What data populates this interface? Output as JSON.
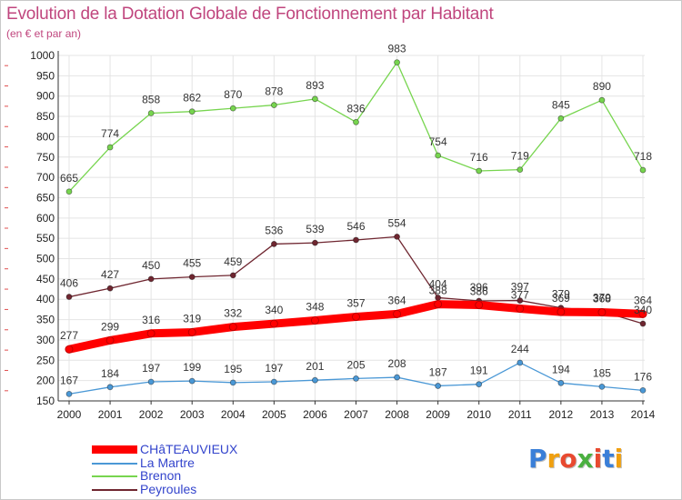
{
  "header": {
    "title": "Evolution de la Dotation Globale de Fonctionnement par Habitant",
    "subtitle": "(en € et par an)"
  },
  "colors": {
    "title": "#c0467e",
    "legend_text": "#3344cc",
    "grid": "#e4e4e4"
  },
  "chart_data": {
    "type": "line",
    "title": "Evolution de la Dotation Globale de Fonctionnement par Habitant",
    "subtitle": "(en € et par an)",
    "xlabel": "",
    "ylabel": "",
    "ylim": [
      150,
      1000
    ],
    "ytick_step": 50,
    "grid": true,
    "legend_position": "bottom-left",
    "categories": [
      "2000",
      "2001",
      "2002",
      "2003",
      "2004",
      "2005",
      "2006",
      "2007",
      "2008",
      "2009",
      "2010",
      "2011",
      "2012",
      "2013",
      "2014"
    ],
    "series": [
      {
        "name": "Brenon",
        "color": "#77d54f",
        "values": [
          665,
          774,
          858,
          862,
          870,
          878,
          893,
          836,
          983,
          754,
          716,
          719,
          845,
          890,
          718
        ]
      },
      {
        "name": "Peyroules",
        "color": "#6f2630",
        "values": [
          406,
          427,
          450,
          455,
          459,
          536,
          539,
          546,
          554,
          404,
          396,
          397,
          379,
          370,
          340
        ]
      },
      {
        "name": "La Martre",
        "color": "#4a98d6",
        "values": [
          167,
          184,
          197,
          199,
          195,
          197,
          201,
          205,
          208,
          187,
          191,
          244,
          194,
          185,
          176
        ]
      },
      {
        "name": "CHâTEAUVIEUX",
        "color": "#ff0000",
        "values": [
          277,
          299,
          316,
          319,
          332,
          340,
          348,
          357,
          364,
          388,
          386,
          377,
          369,
          368,
          364
        ]
      }
    ]
  },
  "legend": {
    "items": [
      {
        "label": "CHâTEAUVIEUX",
        "color": "#ff0000"
      },
      {
        "label": "La Martre",
        "color": "#4a98d6"
      },
      {
        "label": "Brenon",
        "color": "#77d54f"
      },
      {
        "label": "Peyroules",
        "color": "#6f2630"
      }
    ]
  },
  "logo": {
    "text": "Proxiti",
    "colors": [
      "#3a7fd8",
      "#f0a010",
      "#e84a30",
      "#4ab040",
      "#e84a30",
      "#3a7fd8",
      "#f0a010"
    ]
  }
}
